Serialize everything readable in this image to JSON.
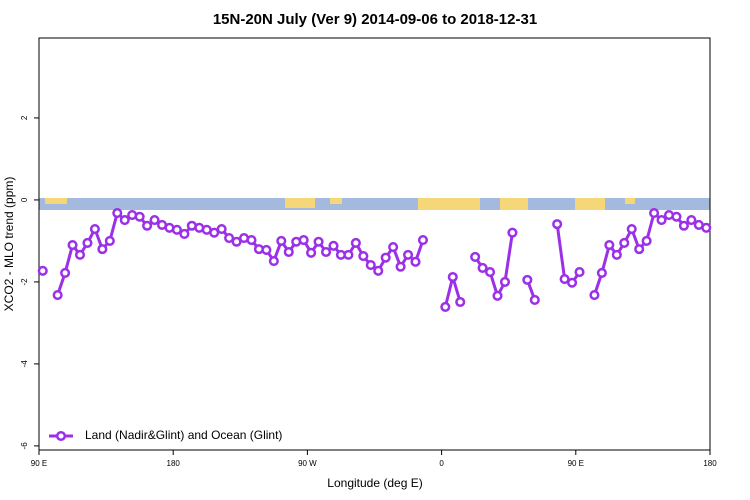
{
  "chart_data": {
    "type": "line",
    "title": "15N-20N July (Ver 9)   2014-09-06 to 2018-12-31",
    "x_label": "Longitude (deg E)",
    "y_label": "XCO2 - MLO trend (ppm)",
    "xlim": [
      90,
      540
    ],
    "ylim": [
      -6.1,
      3.95
    ],
    "xticks": [
      {
        "value": 90,
        "label": "90 E"
      },
      {
        "value": 180,
        "label": "180"
      },
      {
        "value": 270,
        "label": "90 W"
      },
      {
        "value": 360,
        "label": "0"
      },
      {
        "value": 450,
        "label": "90 E"
      },
      {
        "value": 540,
        "label": "180"
      }
    ],
    "yticks": [
      -6,
      -4,
      -2,
      0,
      2
    ],
    "legend_position": "bottom-left",
    "x": [
      92.5,
      97.5,
      102.5,
      107.5,
      112.5,
      117.5,
      122.5,
      127.5,
      132.5,
      137.5,
      142.5,
      147.5,
      152.5,
      157.5,
      162.5,
      167.5,
      172.5,
      177.5,
      182.5,
      187.5,
      192.5,
      197.5,
      202.5,
      207.5,
      212.5,
      217.5,
      222.5,
      227.5,
      232.5,
      237.5,
      242.5,
      247.5,
      252.5,
      257.5,
      262.5,
      267.5,
      272.5,
      277.5,
      282.5,
      287.5,
      292.5,
      297.5,
      302.5,
      307.5,
      312.5,
      317.5,
      322.5,
      327.5,
      332.5,
      337.5,
      342.5,
      347.5,
      352.5,
      357.5,
      362.5,
      367.5,
      372.5,
      377.5,
      382.5,
      387.5,
      392.5,
      397.5,
      402.5,
      407.5,
      412.5,
      417.5,
      422.5,
      427.5,
      432.5,
      437.5,
      442.5,
      447.5,
      452.5,
      457.5,
      462.5,
      467.5,
      472.5,
      477.5,
      482.5,
      487.5,
      492.5,
      497.5,
      502.5,
      507.5,
      512.5,
      517.5,
      522.5,
      527.5,
      532.5,
      537.5
    ],
    "series": [
      {
        "name": "Land (Nadir&Glint) and Ocean (Glint)",
        "color": "#9b30e8",
        "values": [
          -1.73,
          null,
          -2.32,
          -1.78,
          -1.1,
          -1.34,
          -1.05,
          -0.71,
          -1.2,
          -1.0,
          -0.32,
          -0.49,
          -0.37,
          -0.41,
          -0.63,
          -0.49,
          -0.61,
          -0.68,
          -0.73,
          -0.83,
          -0.63,
          -0.68,
          -0.73,
          -0.8,
          -0.71,
          -0.93,
          -1.02,
          -0.93,
          -0.98,
          -1.2,
          -1.22,
          -1.49,
          -1.0,
          -1.27,
          -1.02,
          -0.98,
          -1.29,
          -1.02,
          -1.27,
          -1.12,
          -1.34,
          -1.34,
          -1.05,
          -1.37,
          -1.59,
          -1.73,
          -1.41,
          -1.15,
          -1.63,
          -1.34,
          -1.51,
          -0.98,
          null,
          null,
          -2.61,
          -1.88,
          -2.49,
          null,
          -1.39,
          -1.66,
          -1.76,
          -2.34,
          -2.0,
          -0.8,
          null,
          -1.95,
          -2.44,
          null,
          null,
          -0.59,
          -1.93,
          -2.02,
          -1.76,
          null,
          -2.32,
          -1.78,
          -1.1,
          -1.34,
          -1.05,
          -0.71,
          -1.2,
          -1.0,
          -0.32,
          -0.49,
          -0.37,
          -0.41,
          -0.63,
          -0.49,
          -0.61,
          -0.68
        ]
      }
    ]
  }
}
